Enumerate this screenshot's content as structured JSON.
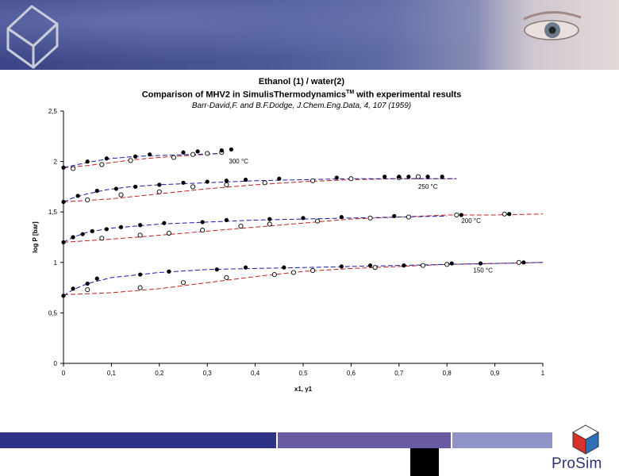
{
  "slide": {
    "logo_text": "ProSim",
    "colors": {
      "banner": "#3c4587",
      "footer_dark": "#2f3386",
      "footer_mid": "#6a5aa4",
      "footer_light": "#8f93c6",
      "logo_red": "#d8322b",
      "logo_blue": "#2f6fb6"
    }
  },
  "chart_data": {
    "type": "scatter",
    "title": "Ethanol (1) / water(2)",
    "subtitle": "Comparison of MHV2 in SimulisThermodynamics",
    "subtitle_tm": "TM",
    "subtitle_suffix": " with experimental results",
    "reference": "Barr-David,F. and B.F.Dodge, J.Chem.Eng.Data, 4, 107 (1959)",
    "xlabel": "x1, y1",
    "ylabel": "log P [bar]",
    "xlim": [
      0,
      1
    ],
    "ylim": [
      0,
      2.5
    ],
    "xticks": [
      "0",
      "0,1",
      "0,2",
      "0,3",
      "0,4",
      "0,5",
      "0,6",
      "0,7",
      "0,8",
      "0,9",
      "1"
    ],
    "yticks": [
      "0",
      "0,5",
      "1",
      "1,5",
      "2",
      "2,5"
    ],
    "series": [
      {
        "name": "300 °C",
        "label": "300 °C",
        "label_at": [
          0.345,
          1.98
        ],
        "bubble_exp": [
          [
            0.0,
            1.94
          ],
          [
            0.05,
            2.0
          ],
          [
            0.09,
            2.03
          ],
          [
            0.15,
            2.05
          ],
          [
            0.18,
            2.07
          ],
          [
            0.25,
            2.09
          ],
          [
            0.28,
            2.1
          ],
          [
            0.33,
            2.11
          ],
          [
            0.35,
            2.12
          ]
        ],
        "dew_exp": [
          [
            0.02,
            1.93
          ],
          [
            0.08,
            1.97
          ],
          [
            0.14,
            2.01
          ],
          [
            0.23,
            2.04
          ],
          [
            0.27,
            2.07
          ],
          [
            0.3,
            2.08
          ],
          [
            0.33,
            2.09
          ]
        ],
        "bubble_calc": [
          [
            0.0,
            1.94
          ],
          [
            0.03,
            1.97
          ],
          [
            0.06,
            2.0
          ],
          [
            0.1,
            2.03
          ],
          [
            0.15,
            2.05
          ],
          [
            0.2,
            2.06
          ],
          [
            0.27,
            2.07
          ],
          [
            0.33,
            2.08
          ]
        ],
        "dew_calc": [
          [
            0.0,
            1.94
          ],
          [
            0.05,
            1.96
          ],
          [
            0.1,
            1.99
          ],
          [
            0.15,
            2.02
          ],
          [
            0.2,
            2.04
          ],
          [
            0.26,
            2.06
          ],
          [
            0.33,
            2.08
          ]
        ]
      },
      {
        "name": "250 °C",
        "label": "250 °C",
        "label_at": [
          0.74,
          1.73
        ],
        "bubble_exp": [
          [
            0.0,
            1.6
          ],
          [
            0.03,
            1.66
          ],
          [
            0.07,
            1.71
          ],
          [
            0.11,
            1.73
          ],
          [
            0.15,
            1.75
          ],
          [
            0.2,
            1.77
          ],
          [
            0.25,
            1.79
          ],
          [
            0.3,
            1.8
          ],
          [
            0.34,
            1.81
          ],
          [
            0.38,
            1.82
          ],
          [
            0.45,
            1.83
          ],
          [
            0.57,
            1.84
          ],
          [
            0.67,
            1.85
          ],
          [
            0.7,
            1.85
          ],
          [
            0.72,
            1.85
          ],
          [
            0.76,
            1.85
          ],
          [
            0.79,
            1.85
          ]
        ],
        "dew_exp": [
          [
            0.05,
            1.62
          ],
          [
            0.12,
            1.67
          ],
          [
            0.2,
            1.7
          ],
          [
            0.27,
            1.75
          ],
          [
            0.34,
            1.77
          ],
          [
            0.42,
            1.79
          ],
          [
            0.52,
            1.81
          ],
          [
            0.6,
            1.83
          ],
          [
            0.7,
            1.84
          ],
          [
            0.74,
            1.85
          ]
        ],
        "bubble_calc": [
          [
            0.0,
            1.6
          ],
          [
            0.02,
            1.64
          ],
          [
            0.05,
            1.68
          ],
          [
            0.09,
            1.72
          ],
          [
            0.14,
            1.75
          ],
          [
            0.2,
            1.77
          ],
          [
            0.3,
            1.79
          ],
          [
            0.4,
            1.81
          ],
          [
            0.5,
            1.82
          ],
          [
            0.6,
            1.83
          ],
          [
            0.7,
            1.83
          ],
          [
            0.82,
            1.83
          ]
        ],
        "dew_calc": [
          [
            0.0,
            1.6
          ],
          [
            0.1,
            1.63
          ],
          [
            0.2,
            1.68
          ],
          [
            0.3,
            1.73
          ],
          [
            0.4,
            1.77
          ],
          [
            0.5,
            1.8
          ],
          [
            0.6,
            1.82
          ],
          [
            0.7,
            1.83
          ],
          [
            0.82,
            1.83
          ]
        ]
      },
      {
        "name": "200 °C",
        "label": "200 °C",
        "label_at": [
          0.83,
          1.39
        ],
        "bubble_exp": [
          [
            0.0,
            1.2
          ],
          [
            0.02,
            1.25
          ],
          [
            0.04,
            1.28
          ],
          [
            0.06,
            1.31
          ],
          [
            0.09,
            1.33
          ],
          [
            0.12,
            1.35
          ],
          [
            0.16,
            1.37
          ],
          [
            0.21,
            1.39
          ],
          [
            0.29,
            1.4
          ],
          [
            0.34,
            1.42
          ],
          [
            0.43,
            1.43
          ],
          [
            0.5,
            1.44
          ],
          [
            0.58,
            1.45
          ],
          [
            0.69,
            1.46
          ],
          [
            0.83,
            1.47
          ],
          [
            0.93,
            1.48
          ]
        ],
        "dew_exp": [
          [
            0.08,
            1.24
          ],
          [
            0.16,
            1.27
          ],
          [
            0.22,
            1.29
          ],
          [
            0.29,
            1.32
          ],
          [
            0.37,
            1.36
          ],
          [
            0.43,
            1.38
          ],
          [
            0.53,
            1.41
          ],
          [
            0.64,
            1.44
          ],
          [
            0.72,
            1.45
          ],
          [
            0.82,
            1.47
          ],
          [
            0.92,
            1.48
          ]
        ],
        "bubble_calc": [
          [
            0.0,
            1.2
          ],
          [
            0.02,
            1.25
          ],
          [
            0.05,
            1.3
          ],
          [
            0.1,
            1.34
          ],
          [
            0.15,
            1.36
          ],
          [
            0.2,
            1.38
          ],
          [
            0.3,
            1.4
          ],
          [
            0.4,
            1.42
          ],
          [
            0.5,
            1.43
          ],
          [
            0.6,
            1.44
          ],
          [
            0.7,
            1.45
          ],
          [
            0.8,
            1.46
          ]
        ],
        "dew_calc": [
          [
            0.0,
            1.2
          ],
          [
            0.1,
            1.23
          ],
          [
            0.2,
            1.27
          ],
          [
            0.3,
            1.31
          ],
          [
            0.4,
            1.35
          ],
          [
            0.5,
            1.39
          ],
          [
            0.6,
            1.43
          ],
          [
            0.7,
            1.45
          ],
          [
            0.8,
            1.47
          ],
          [
            0.9,
            1.47
          ],
          [
            1.0,
            1.48
          ]
        ]
      },
      {
        "name": "150 °C",
        "label": "150 °C",
        "label_at": [
          0.855,
          0.9
        ],
        "bubble_exp": [
          [
            0.0,
            0.67
          ],
          [
            0.02,
            0.74
          ],
          [
            0.05,
            0.79
          ],
          [
            0.07,
            0.84
          ],
          [
            0.16,
            0.88
          ],
          [
            0.22,
            0.91
          ],
          [
            0.32,
            0.93
          ],
          [
            0.38,
            0.95
          ],
          [
            0.46,
            0.95
          ],
          [
            0.58,
            0.96
          ],
          [
            0.64,
            0.97
          ],
          [
            0.71,
            0.97
          ],
          [
            0.81,
            0.99
          ],
          [
            0.87,
            0.99
          ],
          [
            0.96,
            1.0
          ]
        ],
        "dew_exp": [
          [
            0.05,
            0.73
          ],
          [
            0.16,
            0.75
          ],
          [
            0.25,
            0.8
          ],
          [
            0.34,
            0.85
          ],
          [
            0.44,
            0.88
          ],
          [
            0.48,
            0.9
          ],
          [
            0.52,
            0.92
          ],
          [
            0.65,
            0.95
          ],
          [
            0.75,
            0.97
          ],
          [
            0.8,
            0.98
          ],
          [
            0.95,
            1.0
          ]
        ],
        "bubble_calc": [
          [
            0.0,
            0.67
          ],
          [
            0.02,
            0.73
          ],
          [
            0.05,
            0.79
          ],
          [
            0.1,
            0.85
          ],
          [
            0.2,
            0.9
          ],
          [
            0.3,
            0.93
          ],
          [
            0.4,
            0.94
          ],
          [
            0.5,
            0.95
          ],
          [
            0.6,
            0.96
          ],
          [
            0.7,
            0.97
          ],
          [
            0.8,
            0.98
          ],
          [
            0.9,
            0.99
          ],
          [
            1.0,
            1.0
          ]
        ],
        "dew_calc": [
          [
            0.0,
            0.68
          ],
          [
            0.1,
            0.7
          ],
          [
            0.2,
            0.74
          ],
          [
            0.3,
            0.8
          ],
          [
            0.4,
            0.86
          ],
          [
            0.5,
            0.91
          ],
          [
            0.6,
            0.94
          ],
          [
            0.7,
            0.96
          ],
          [
            0.8,
            0.98
          ],
          [
            0.9,
            0.99
          ],
          [
            1.0,
            1.0
          ]
        ]
      }
    ]
  }
}
